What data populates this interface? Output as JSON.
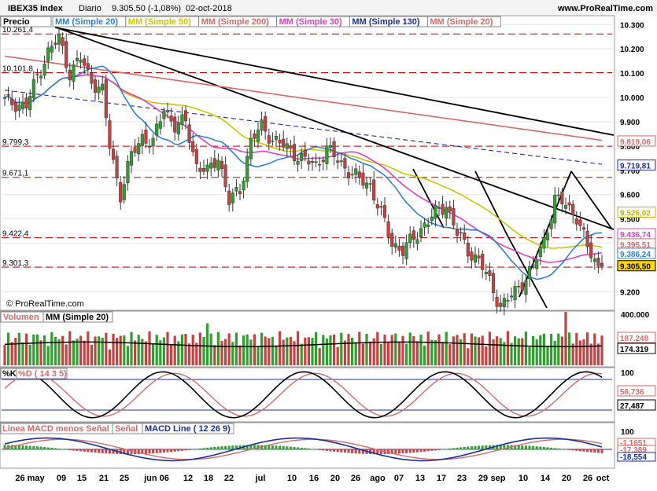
{
  "header": {
    "title": "IBEX35 Index",
    "period": "Diario",
    "price_change": "9.305,50 (-1,08%)",
    "date": "02-oct-2018",
    "site": "www.ProRealTime.com"
  },
  "price_panel": {
    "label": "Precio",
    "legend": [
      {
        "label": "MM (Simple 20)",
        "color": "#2e7fd8"
      },
      {
        "label": "MM (Simple 50)",
        "color": "#c8c800"
      },
      {
        "label": "MM (Simple 200)",
        "color": "#d66a6a"
      },
      {
        "label": "MM (Simple 30)",
        "color": "#e040c0"
      },
      {
        "label": "MM (Simple 130)",
        "color": "#1a2e9a"
      },
      {
        "label": "MM (Simple 20)",
        "color": "#d66a6a"
      }
    ],
    "ticks": [
      "10.300",
      "10.200",
      "10.100",
      "10.000",
      "9.900",
      "9.800",
      "9.700",
      "9.600",
      "9.500",
      "9.400",
      "9.300",
      "9.200"
    ],
    "hlines": [
      "10.261,4",
      "10.101,8",
      "9.799,3",
      "9.671,1",
      "9.422,4",
      "9.301,3"
    ],
    "badges": [
      {
        "label": "9.819,06",
        "color": "#d66a6a",
        "kind": "sma200"
      },
      {
        "label": "9.719,81",
        "color": "#1a2e9a",
        "kind": "sma130"
      },
      {
        "label": "9.526,02",
        "color": "#b8b800",
        "kind": "sma50"
      },
      {
        "label": "9.436,74",
        "color": "#e040c0",
        "kind": "sma30"
      },
      {
        "label": "9.395,51",
        "color": "#d66a6a",
        "kind": "sma20r"
      },
      {
        "label": "9.386,24",
        "color": "#2e7fd8",
        "kind": "sma20"
      },
      {
        "label": "9.305,50",
        "color": "#000000",
        "kind": "price"
      }
    ],
    "copyright": "© ProRealTime.com"
  },
  "volume_panel": {
    "label": "Volumen",
    "ma_label": "MM (Simple 20)",
    "ticks": [
      "400.000",
      "200.000"
    ],
    "badges": [
      {
        "label": "187.248",
        "color": "#d66a6a"
      },
      {
        "label": "174.319",
        "color": "#000000"
      }
    ]
  },
  "stoch_panel": {
    "label_k": "%K",
    "label_d": "%D ( 14 3 5)",
    "ticks": [
      "100"
    ],
    "badges": [
      {
        "label": "56,736",
        "color": "#d66a6a"
      },
      {
        "label": "27,487",
        "color": "#000000"
      }
    ]
  },
  "macd_panel": {
    "label_hist": "Linea MACD menos Señal",
    "label_signal": "Señal",
    "label_macd": "MACD Line ( 12 26 9)",
    "ticks": [
      "100"
    ],
    "badges": [
      {
        "label": "-1,1651",
        "color": "#d66a6a"
      },
      {
        "label": "-17,389",
        "color": "#d66a6a"
      },
      {
        "label": "-18,554",
        "color": "#1a2e9a"
      }
    ]
  },
  "x_axis": {
    "labels": [
      "26 may",
      "09",
      "15",
      "21",
      "25",
      "jun 06",
      "12",
      "18",
      "22",
      "jul",
      "10",
      "16",
      "20",
      "26",
      "ago",
      "07",
      "13",
      "17",
      "23",
      "29",
      "sep",
      "10",
      "14",
      "20",
      "26",
      "oct"
    ]
  },
  "chart_data": {
    "type": "line",
    "ohlc_close_series": [
      [
        0,
        9985
      ],
      [
        3,
        9975
      ],
      [
        6,
        9962
      ],
      [
        9,
        10090
      ],
      [
        12,
        10185
      ],
      [
        15,
        10245
      ],
      [
        18,
        10100
      ],
      [
        21,
        10160
      ],
      [
        24,
        10070
      ],
      [
        27,
        10025
      ],
      [
        29,
        9800
      ],
      [
        32,
        9600
      ],
      [
        35,
        9760
      ],
      [
        38,
        9840
      ],
      [
        41,
        9810
      ],
      [
        44,
        9960
      ],
      [
        47,
        9880
      ],
      [
        50,
        9900
      ],
      [
        53,
        9720
      ],
      [
        56,
        9690
      ],
      [
        59,
        9760
      ],
      [
        62,
        9570
      ],
      [
        65,
        9620
      ],
      [
        68,
        9820
      ],
      [
        71,
        9880
      ],
      [
        74,
        9830
      ],
      [
        77,
        9800
      ],
      [
        80,
        9770
      ],
      [
        83,
        9740
      ],
      [
        86,
        9720
      ],
      [
        89,
        9790
      ],
      [
        92,
        9740
      ],
      [
        95,
        9700
      ],
      [
        98,
        9660
      ],
      [
        101,
        9640
      ],
      [
        104,
        9520
      ],
      [
        107,
        9400
      ],
      [
        110,
        9370
      ],
      [
        113,
        9420
      ],
      [
        116,
        9480
      ],
      [
        119,
        9520
      ],
      [
        122,
        9560
      ],
      [
        125,
        9440
      ],
      [
        128,
        9370
      ],
      [
        131,
        9330
      ],
      [
        134,
        9240
      ],
      [
        137,
        9140
      ],
      [
        140,
        9180
      ],
      [
        143,
        9240
      ],
      [
        146,
        9300
      ],
      [
        149,
        9410
      ],
      [
        152,
        9580
      ],
      [
        155,
        9560
      ],
      [
        158,
        9510
      ],
      [
        161,
        9380
      ],
      [
        164,
        9305
      ]
    ],
    "price_levels": [
      10261.4,
      10101.8,
      9799.3,
      9671.1,
      9422.4,
      9301.3
    ],
    "ylim": [
      9130,
      10330
    ],
    "last_values": {
      "sma200": 9819.06,
      "sma130": 9719.81,
      "sma50": 9526.02,
      "sma30": 9436.74,
      "sma20r": 9395.51,
      "sma20": 9386.24,
      "close": 9305.5
    }
  }
}
